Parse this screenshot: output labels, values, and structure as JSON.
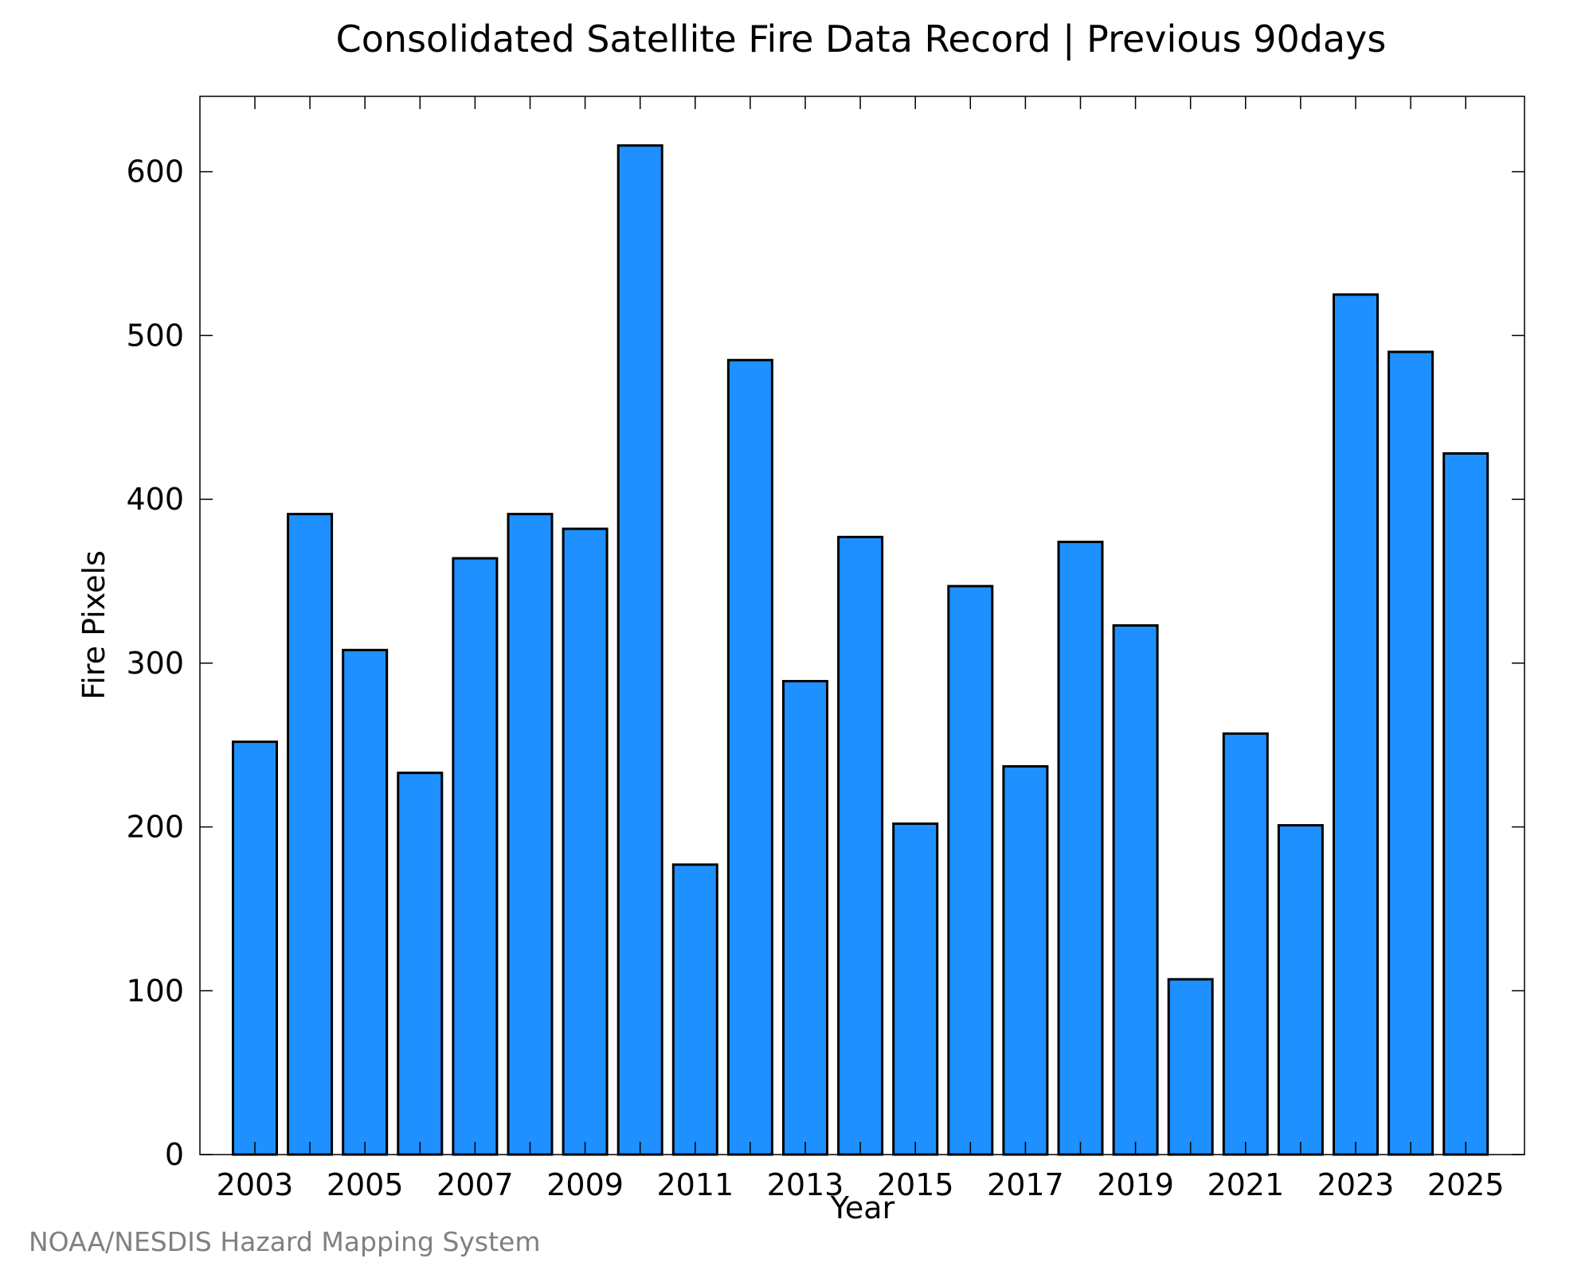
{
  "footer": {
    "credit": "NOAA/NESDIS Hazard Mapping System"
  },
  "chart_data": {
    "type": "bar",
    "title": "Consolidated Satellite Fire Data Record | Previous 90days",
    "xlabel": "Year",
    "ylabel": "Fire Pixels",
    "categories": [
      "2003",
      "2004",
      "2005",
      "2006",
      "2007",
      "2008",
      "2009",
      "2010",
      "2011",
      "2012",
      "2013",
      "2014",
      "2015",
      "2016",
      "2017",
      "2018",
      "2019",
      "2020",
      "2021",
      "2022",
      "2023",
      "2024",
      "2025"
    ],
    "values": [
      252,
      391,
      308,
      233,
      364,
      391,
      382,
      616,
      177,
      485,
      289,
      377,
      202,
      347,
      237,
      374,
      323,
      107,
      257,
      201,
      525,
      490,
      428
    ],
    "x_tick_labels": [
      "2003",
      "2005",
      "2007",
      "2009",
      "2011",
      "2013",
      "2015",
      "2017",
      "2019",
      "2021",
      "2023",
      "2025"
    ],
    "y_ticks": [
      0,
      100,
      200,
      300,
      400,
      500,
      600
    ],
    "ylim": [
      0,
      646
    ],
    "grid": false,
    "colors": {
      "bar_fill": "#1e90ff",
      "bar_stroke": "#000000"
    }
  }
}
